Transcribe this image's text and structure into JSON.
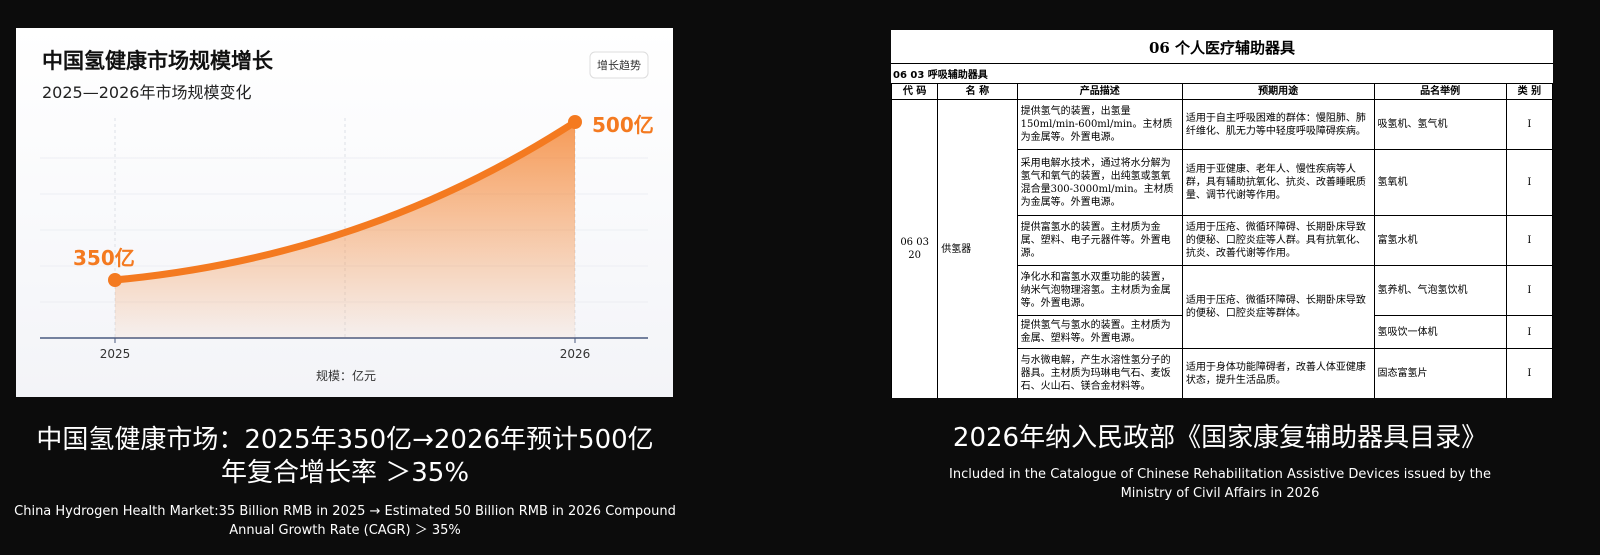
{
  "chart_data": {
    "type": "line",
    "title": "中国氢健康市场规模增长",
    "subtitle": "2025—2026年市场规模变化",
    "button": "增长趋势",
    "categories": [
      "2025",
      "2026"
    ],
    "values": [
      350,
      500
    ],
    "value_labels": [
      "350亿",
      "500亿"
    ],
    "x_label": "规模：亿元",
    "color": "#f47a20",
    "grid": true
  },
  "left_caption": {
    "title_lines": [
      "中国氢健康市场：2025年350亿→2026年预计500亿",
      "年复合增长率 ＞35%"
    ],
    "english": "China Hydrogen Health Market:35 Billion RMB in 2025 → Estimated 50 Billion RMB in 2026 Compound Annual Growth Rate (CAGR) ＞ 35%"
  },
  "table": {
    "title": "06 个人医疗辅助器具",
    "section": "06 03 呼吸辅助器具",
    "headers": [
      "代 码",
      "名 称",
      "产品描述",
      "预期用途",
      "品名举例",
      "类 别"
    ],
    "code": "06 03 20",
    "name": "供氢器",
    "rows": [
      {
        "desc": "提供氢气的装置，出氢量150ml/min-600ml/min。主材质为金属等。外置电源。",
        "use": "适用于自主呼吸困难的群体：慢阻肺、肺纤维化、肌无力等中轻度呼吸障碍疾病。",
        "example": "吸氢机、氢气机",
        "class": "Ⅰ"
      },
      {
        "desc": "采用电解水技术，通过将水分解为氢气和氧气的装置，出纯氢或氢氧混合量300-3000ml/min。主材质为金属等。外置电源。",
        "use": "适用于亚健康、老年人、慢性疾病等人群，具有辅助抗氧化、抗炎、改善睡眠质量、调节代谢等作用。",
        "example": "氢氧机",
        "class": "Ⅰ"
      },
      {
        "desc": "提供富氢水的装置。主材质为金属、塑料、电子元器件等。外置电源。",
        "use": "适用于压疮、微循环障碍、长期卧床导致的便秘、口腔炎症等人群。具有抗氧化、抗炎、改善代谢等作用。",
        "example": "富氢水机",
        "class": "Ⅰ"
      },
      {
        "desc": "净化水和富氢水双重功能的装置，纳米气泡物理溶氢。主材质为金属等。外置电源。",
        "use": "适用于压疮、微循环障碍、长期卧床导致的便秘、口腔炎症等群体。",
        "example": "氢养机、气泡氢饮机",
        "class": "Ⅰ"
      },
      {
        "desc": "提供氢气与氢水的装置。主材质为金属、塑料等。外置电源。",
        "example": "氢吸饮一体机",
        "class": "Ⅰ"
      },
      {
        "desc": "与水微电解，产生水溶性氢分子的器具。主材质为玛琳电气石、麦饭石、火山石、镁合金材料等。",
        "use": "适用于身体功能障碍者，改善人体亚健康状态，提升生活品质。",
        "example": "固态富氢片",
        "class": "Ⅰ"
      }
    ]
  },
  "right_caption": {
    "title": "2026年纳入民政部《国家康复辅助器具目录》",
    "english": "Included in the Catalogue of Chinese Rehabilitation Assistive Devices issued  by the Ministry of Civil Affairs in 2026"
  }
}
